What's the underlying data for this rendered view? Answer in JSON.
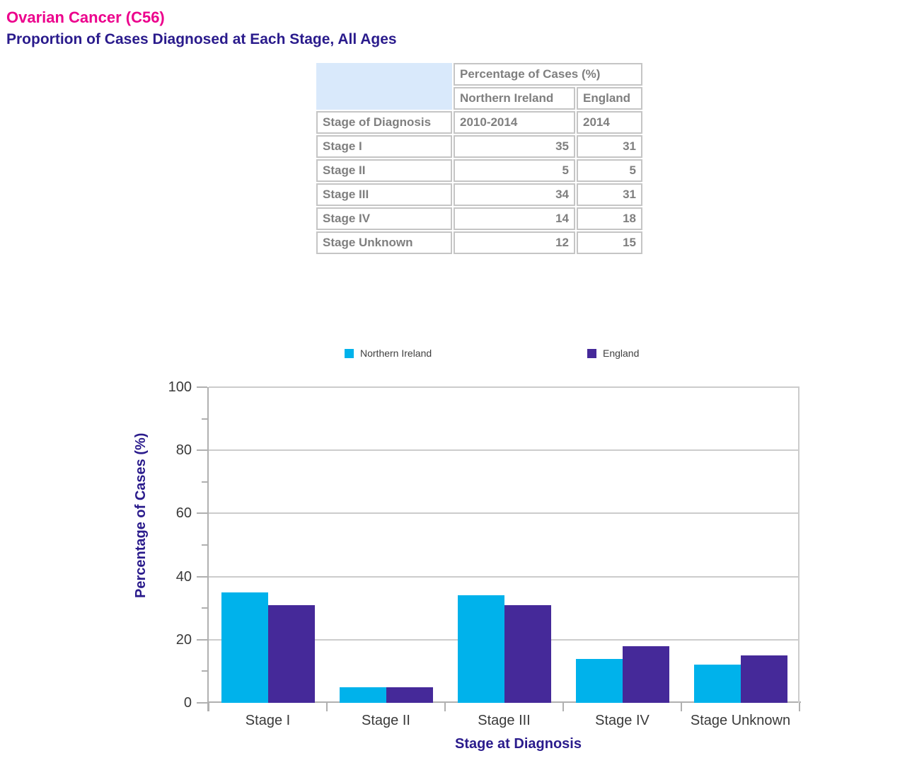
{
  "page": {
    "title": "Ovarian Cancer (C56)",
    "subtitle": "Proportion of Cases Diagnosed at Each Stage, All Ages",
    "title_color": "#ec008c",
    "subtitle_color": "#2a1b8c"
  },
  "table": {
    "header": {
      "group": "Percentage of Cases (%)",
      "region1": "Northern Ireland",
      "region2": "England",
      "row_label": "Stage of Diagnosis",
      "period1": "2010-2014",
      "period2": "2014"
    },
    "rows": [
      {
        "label": "Stage I",
        "northern_ireland": "35",
        "england": "31"
      },
      {
        "label": "Stage II",
        "northern_ireland": "5",
        "england": "5"
      },
      {
        "label": "Stage III",
        "northern_ireland": "34",
        "england": "31"
      },
      {
        "label": "Stage IV",
        "northern_ireland": "14",
        "england": "18"
      },
      {
        "label": "Stage Unknown",
        "northern_ireland": "12",
        "england": "15"
      }
    ]
  },
  "chart_data": {
    "type": "bar",
    "categories": [
      "Stage I",
      "Stage II",
      "Stage III",
      "Stage IV",
      "Stage Unknown"
    ],
    "series": [
      {
        "name": "Northern Ireland",
        "color": "#00b2eb",
        "values": [
          35,
          5,
          34,
          14,
          12
        ]
      },
      {
        "name": "England",
        "color": "#452999",
        "values": [
          31,
          5,
          31,
          18,
          15
        ]
      }
    ],
    "xlabel": "Stage at Diagnosis",
    "ylabel": "Percentage of Cases (%)",
    "ylim": [
      0,
      100
    ],
    "ytick_step": 20,
    "yminor_step": 10,
    "grid": true,
    "legend_position": "top"
  }
}
